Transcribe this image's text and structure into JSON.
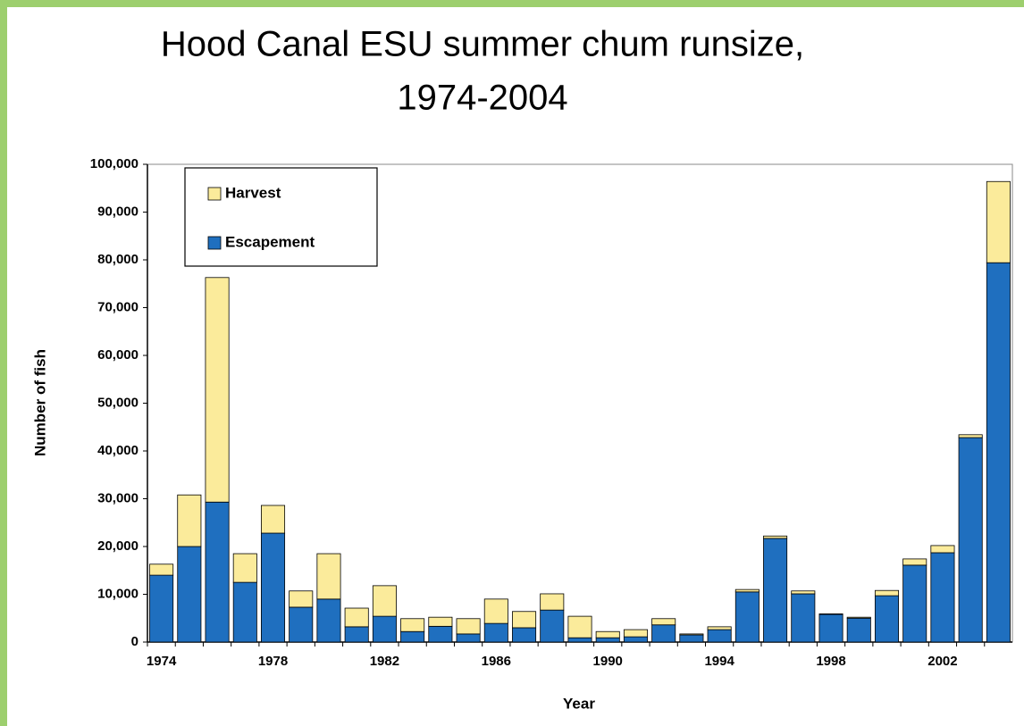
{
  "chart_data": {
    "type": "stacked_bar",
    "title": [
      "Hood Canal ESU summer chum runsize,",
      "1974-2004"
    ],
    "x_label": "Year",
    "y_label": "Number of fish",
    "categories": [
      "1974",
      null,
      null,
      null,
      "1978",
      null,
      null,
      null,
      "1982",
      null,
      null,
      null,
      "1986",
      null,
      null,
      null,
      "1990",
      null,
      null,
      null,
      "1994",
      null,
      null,
      null,
      "1998",
      null,
      null,
      null,
      "2002",
      null,
      null
    ],
    "series": [
      {
        "name": "Escapement",
        "color": "#1f6fbf",
        "values": [
          14000,
          20000,
          29300,
          12500,
          22800,
          7300,
          9000,
          3200,
          5400,
          2200,
          3300,
          1700,
          3900,
          3000,
          6700,
          900,
          900,
          1100,
          3600,
          1500,
          2600,
          10500,
          21700,
          10100,
          5800,
          5000,
          9700,
          16100,
          18700,
          42800,
          79400
        ]
      },
      {
        "name": "Harvest",
        "color": "#fbeb9b",
        "values": [
          2300,
          10800,
          47000,
          6000,
          5800,
          3400,
          9500,
          3900,
          6400,
          2700,
          1900,
          3200,
          5100,
          3400,
          3400,
          4500,
          1300,
          1500,
          1300,
          200,
          600,
          500,
          500,
          600,
          100,
          200,
          1100,
          1300,
          1500,
          600,
          17000
        ]
      }
    ],
    "ylim": [
      0,
      100000
    ],
    "yticks": [
      0,
      {
        "value": 10000,
        "label": "10,000"
      },
      {
        "value": 20000,
        "label": "20,000"
      },
      {
        "value": 30000,
        "label": "30,000"
      },
      {
        "value": 40000,
        "label": "40,000"
      },
      {
        "value": 50000,
        "label": "50,000"
      },
      {
        "value": 60000,
        "label": "60,000"
      },
      {
        "value": 70000,
        "label": "70,000"
      },
      {
        "value": 80000,
        "label": "80,000"
      },
      {
        "value": 90000,
        "label": "90,000"
      },
      {
        "value": 100000,
        "label": "100,000"
      }
    ],
    "grid": false,
    "legend": "upper left"
  }
}
